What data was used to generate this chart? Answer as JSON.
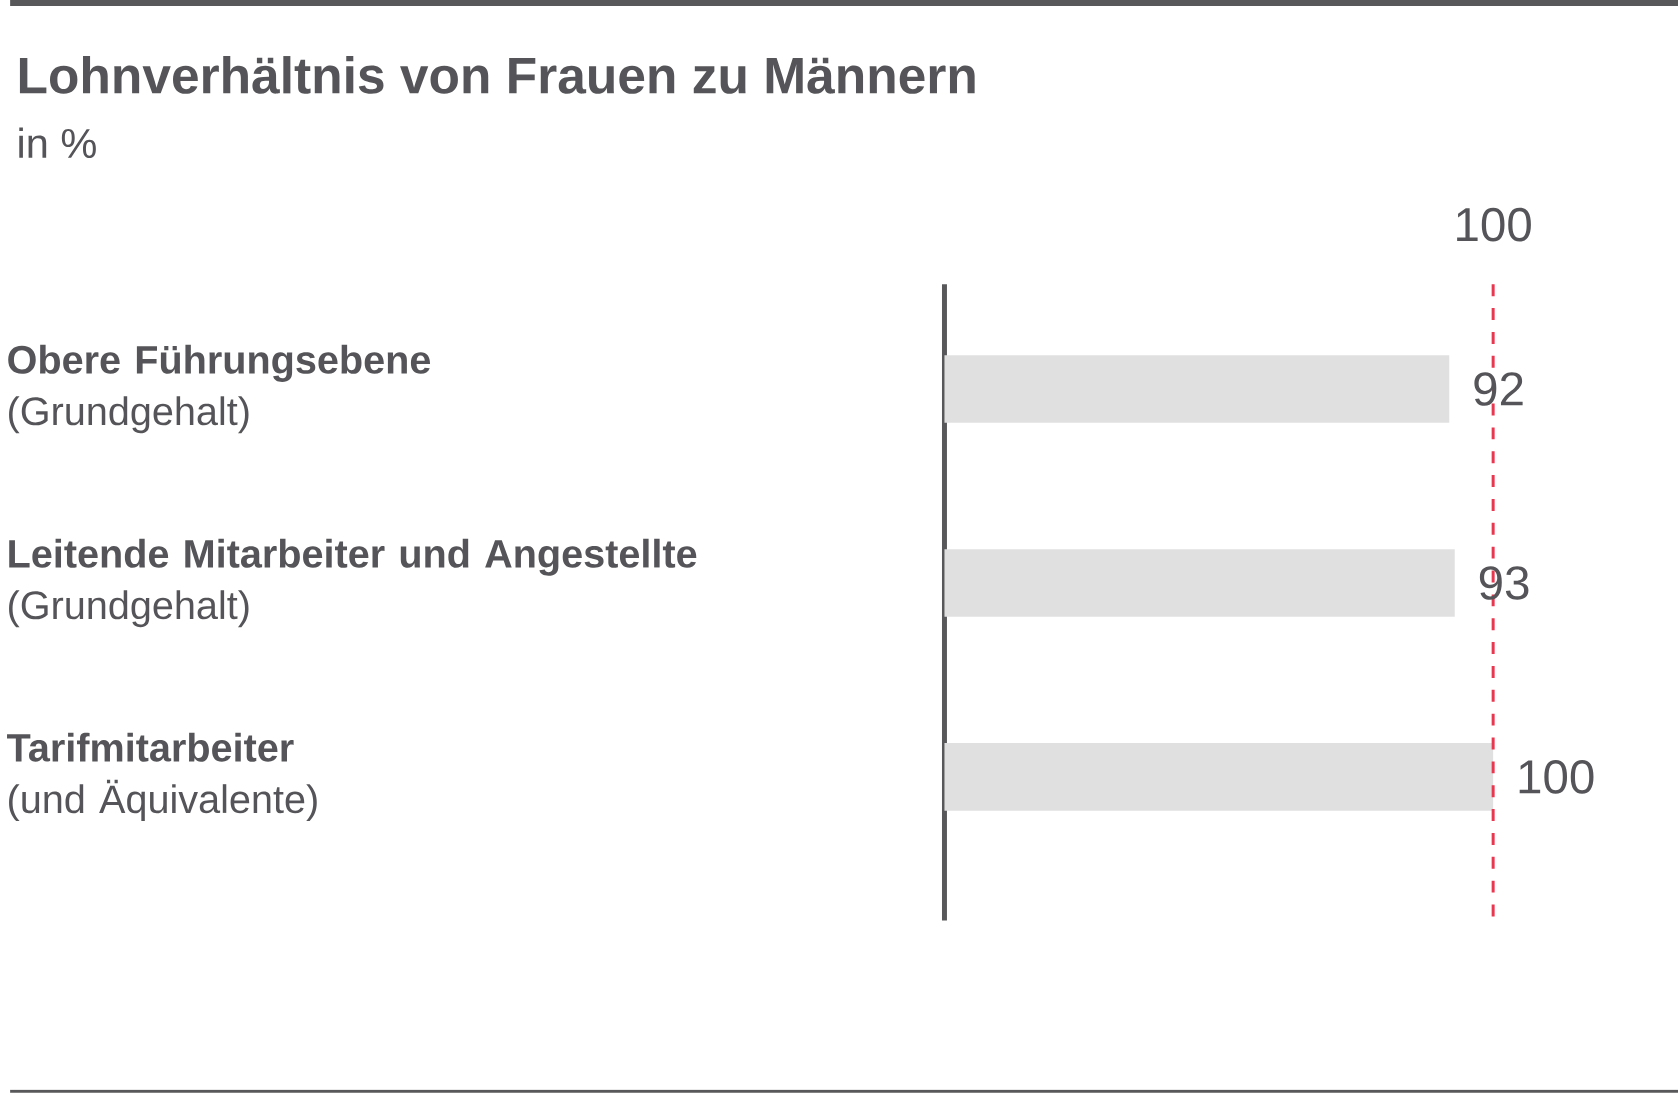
{
  "chart_data": {
    "type": "bar",
    "orientation": "horizontal",
    "title": "Lohnverhältnis von Frauen zu Männern",
    "subtitle": "in %",
    "categories": [
      "**Obere Führungsebene**\n(Grundgehalt)",
      "**Leitende Mitarbeiter und Angestellte**\n(Grundgehalt)",
      "**Tarifmitarbeiter**\n(und Äquivalente)"
    ],
    "values": [
      92,
      93,
      100
    ],
    "color": "#e0e0e0",
    "data_labels": true,
    "xlim": [
      0,
      100
    ],
    "ref_lines": [
      {
        "axis": "x",
        "value": 100,
        "label": "100",
        "color": "#e8384f",
        "line_style": "dashed"
      }
    ]
  }
}
